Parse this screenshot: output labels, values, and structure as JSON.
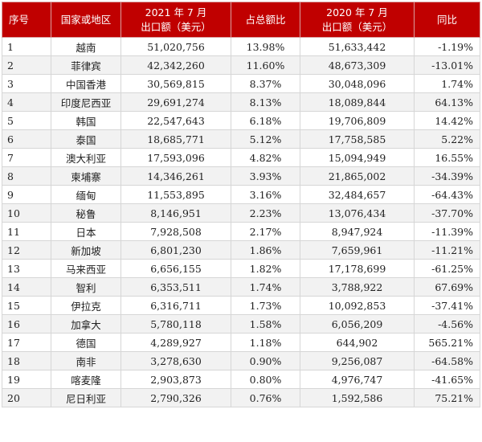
{
  "table": {
    "headers": {
      "index": "序号",
      "country": "国家或地区",
      "exports_2021_line1": "2021 年 7 月",
      "exports_2021_line2": "出口额（美元）",
      "share": "占总额比",
      "exports_2020_line1": "2020 年 7 月",
      "exports_2020_line2": "出口额（美元）",
      "yoy": "同比"
    },
    "rows": [
      {
        "index": "1",
        "country": "越南",
        "exports_2021": "51,020,756",
        "share": "13.98%",
        "exports_2020": "51,633,442",
        "yoy": "-1.19%"
      },
      {
        "index": "2",
        "country": "菲律宾",
        "exports_2021": "42,342,260",
        "share": "11.60%",
        "exports_2020": "48,673,309",
        "yoy": "-13.01%"
      },
      {
        "index": "3",
        "country": "中国香港",
        "exports_2021": "30,569,815",
        "share": "8.37%",
        "exports_2020": "30,048,096",
        "yoy": "1.74%"
      },
      {
        "index": "4",
        "country": "印度尼西亚",
        "exports_2021": "29,691,274",
        "share": "8.13%",
        "exports_2020": "18,089,844",
        "yoy": "64.13%"
      },
      {
        "index": "5",
        "country": "韩国",
        "exports_2021": "22,547,643",
        "share": "6.18%",
        "exports_2020": "19,706,809",
        "yoy": "14.42%"
      },
      {
        "index": "6",
        "country": "泰国",
        "exports_2021": "18,685,771",
        "share": "5.12%",
        "exports_2020": "17,758,585",
        "yoy": "5.22%"
      },
      {
        "index": "7",
        "country": "澳大利亚",
        "exports_2021": "17,593,096",
        "share": "4.82%",
        "exports_2020": "15,094,949",
        "yoy": "16.55%"
      },
      {
        "index": "8",
        "country": "柬埔寨",
        "exports_2021": "14,346,261",
        "share": "3.93%",
        "exports_2020": "21,865,002",
        "yoy": "-34.39%"
      },
      {
        "index": "9",
        "country": "缅甸",
        "exports_2021": "11,553,895",
        "share": "3.16%",
        "exports_2020": "32,484,657",
        "yoy": "-64.43%"
      },
      {
        "index": "10",
        "country": "秘鲁",
        "exports_2021": "8,146,951",
        "share": "2.23%",
        "exports_2020": "13,076,434",
        "yoy": "-37.70%"
      },
      {
        "index": "11",
        "country": "日本",
        "exports_2021": "7,928,508",
        "share": "2.17%",
        "exports_2020": "8,947,924",
        "yoy": "-11.39%"
      },
      {
        "index": "12",
        "country": "新加坡",
        "exports_2021": "6,801,230",
        "share": "1.86%",
        "exports_2020": "7,659,961",
        "yoy": "-11.21%"
      },
      {
        "index": "13",
        "country": "马来西亚",
        "exports_2021": "6,656,155",
        "share": "1.82%",
        "exports_2020": "17,178,699",
        "yoy": "-61.25%"
      },
      {
        "index": "14",
        "country": "智利",
        "exports_2021": "6,353,511",
        "share": "1.74%",
        "exports_2020": "3,788,922",
        "yoy": "67.69%"
      },
      {
        "index": "15",
        "country": "伊拉克",
        "exports_2021": "6,316,711",
        "share": "1.73%",
        "exports_2020": "10,092,853",
        "yoy": "-37.41%"
      },
      {
        "index": "16",
        "country": "加拿大",
        "exports_2021": "5,780,118",
        "share": "1.58%",
        "exports_2020": "6,056,209",
        "yoy": "-4.56%"
      },
      {
        "index": "17",
        "country": "德国",
        "exports_2021": "4,289,927",
        "share": "1.18%",
        "exports_2020": "644,902",
        "yoy": "565.21%"
      },
      {
        "index": "18",
        "country": "南非",
        "exports_2021": "3,278,630",
        "share": "0.90%",
        "exports_2020": "9,256,087",
        "yoy": "-64.58%"
      },
      {
        "index": "19",
        "country": "喀麦隆",
        "exports_2021": "2,903,873",
        "share": "0.80%",
        "exports_2020": "4,976,747",
        "yoy": "-41.65%"
      },
      {
        "index": "20",
        "country": "尼日利亚",
        "exports_2021": "2,790,326",
        "share": "0.76%",
        "exports_2020": "1,592,586",
        "yoy": "75.21%"
      }
    ]
  }
}
